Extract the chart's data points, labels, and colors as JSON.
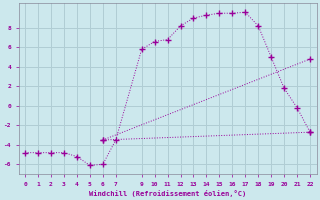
{
  "xlabel": "Windchill (Refroidissement éolien,°C)",
  "bg_color": "#cce8ed",
  "grid_color": "#b0cdd4",
  "line_color": "#990099",
  "xlim": [
    -0.5,
    22.5
  ],
  "ylim": [
    -7,
    10.5
  ],
  "xticks": [
    0,
    1,
    2,
    3,
    4,
    5,
    6,
    7,
    9,
    10,
    11,
    12,
    13,
    14,
    15,
    16,
    17,
    18,
    19,
    20,
    21,
    22
  ],
  "yticks": [
    -6,
    -4,
    -2,
    0,
    2,
    4,
    6,
    8
  ],
  "line1_x": [
    0,
    1,
    2,
    3,
    4,
    5,
    6,
    7,
    9,
    10,
    11,
    12,
    13,
    14,
    15,
    16,
    17,
    18,
    19,
    20,
    21,
    22
  ],
  "line1_y": [
    -4.8,
    -4.8,
    -4.8,
    -4.8,
    -5.2,
    -6.1,
    -6.0,
    -3.5,
    5.8,
    6.6,
    6.8,
    8.2,
    9.0,
    9.3,
    9.5,
    9.5,
    9.6,
    8.2,
    5.0,
    1.8,
    -0.2,
    -2.7
  ],
  "line2_x": [
    6,
    22
  ],
  "line2_y": [
    -3.5,
    4.8
  ],
  "line3_x": [
    6,
    22
  ],
  "line3_y": [
    -3.5,
    -2.7
  ],
  "marker": "+",
  "markersize": 4,
  "markeredgewidth": 1.0
}
